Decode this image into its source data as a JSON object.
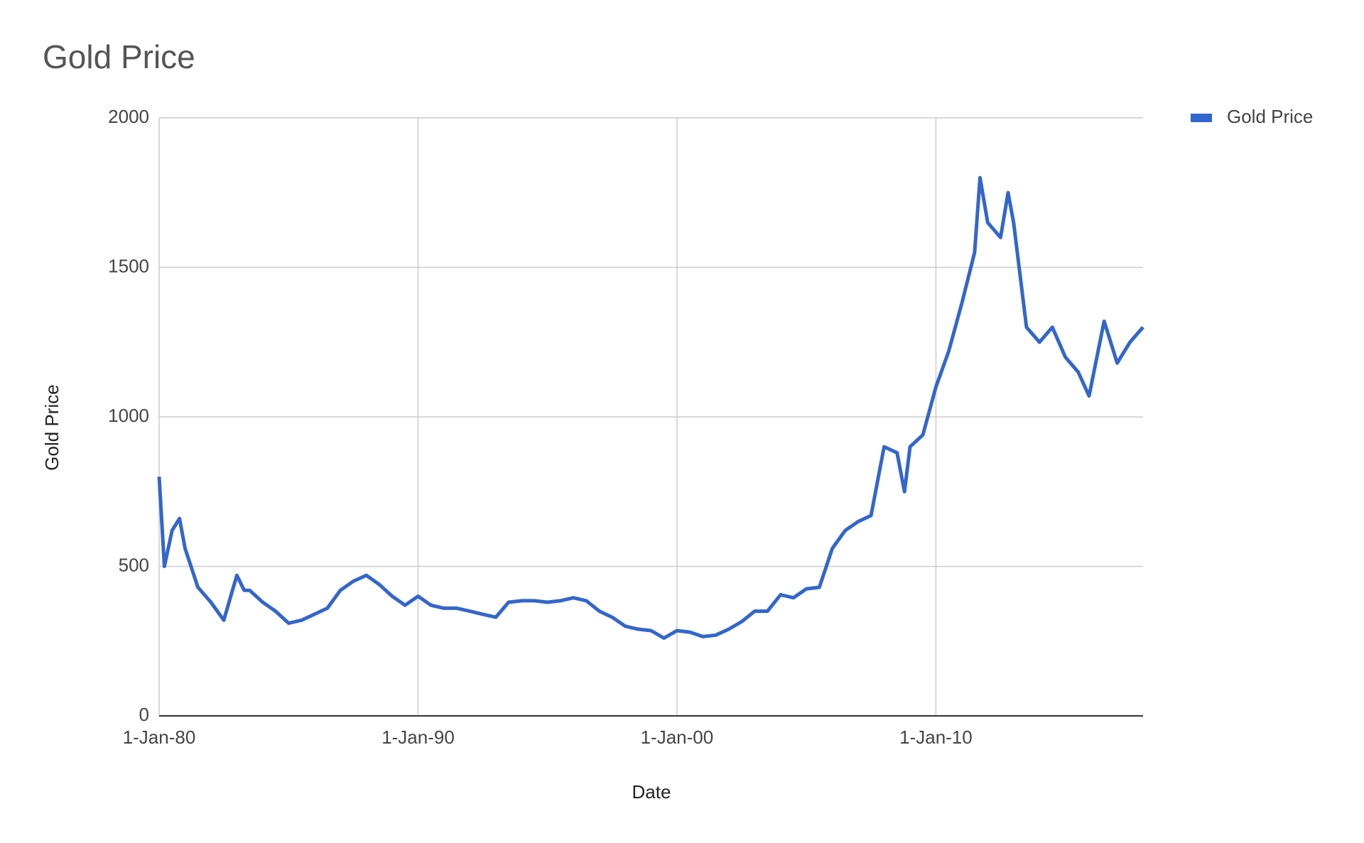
{
  "chart_data": {
    "type": "line",
    "title": "Gold Price",
    "x_label": "Date",
    "y_label": "Gold Price",
    "x": [
      "1980-01-01",
      "1980-03-15",
      "1980-07-01",
      "1980-10-15",
      "1981-01-01",
      "1981-07-01",
      "1982-01-01",
      "1982-07-01",
      "1983-01-01",
      "1983-04-15",
      "1983-07-01",
      "1984-01-01",
      "1984-07-01",
      "1985-01-01",
      "1985-07-01",
      "1986-01-01",
      "1986-07-01",
      "1987-01-01",
      "1987-07-01",
      "1988-01-01",
      "1988-07-01",
      "1989-01-01",
      "1989-07-01",
      "1990-01-01",
      "1990-07-01",
      "1991-01-01",
      "1991-07-01",
      "1992-01-01",
      "1992-07-01",
      "1993-01-01",
      "1993-07-01",
      "1994-01-01",
      "1994-07-01",
      "1995-01-01",
      "1995-07-01",
      "1996-01-01",
      "1996-07-01",
      "1997-01-01",
      "1997-07-01",
      "1998-01-01",
      "1998-07-01",
      "1999-01-01",
      "1999-07-01",
      "2000-01-01",
      "2000-07-01",
      "2001-01-01",
      "2001-07-01",
      "2002-01-01",
      "2002-07-01",
      "2003-01-01",
      "2003-07-01",
      "2004-01-01",
      "2004-07-01",
      "2005-01-01",
      "2005-07-01",
      "2006-01-01",
      "2006-07-01",
      "2007-01-01",
      "2007-07-01",
      "2008-01-01",
      "2008-07-01",
      "2008-10-15",
      "2009-01-01",
      "2009-07-01",
      "2010-01-01",
      "2010-07-01",
      "2011-01-01",
      "2011-07-01",
      "2011-09-15",
      "2012-01-01",
      "2012-07-01",
      "2012-10-15",
      "2013-01-01",
      "2013-07-01",
      "2014-01-01",
      "2014-07-01",
      "2015-01-01",
      "2015-07-01",
      "2015-12-01",
      "2016-07-01",
      "2017-01-01",
      "2017-07-01",
      "2018-01-01"
    ],
    "series": [
      {
        "name": "Gold Price",
        "color": "#3366cc",
        "values": [
          800,
          500,
          620,
          660,
          560,
          430,
          380,
          320,
          470,
          420,
          420,
          380,
          350,
          310,
          320,
          340,
          360,
          420,
          450,
          470,
          440,
          400,
          370,
          400,
          370,
          360,
          360,
          350,
          340,
          330,
          380,
          385,
          385,
          380,
          385,
          395,
          385,
          350,
          330,
          300,
          290,
          285,
          260,
          285,
          280,
          265,
          270,
          290,
          315,
          350,
          350,
          405,
          395,
          425,
          430,
          560,
          620,
          650,
          670,
          900,
          880,
          750,
          900,
          940,
          1100,
          1220,
          1380,
          1550,
          1800,
          1650,
          1600,
          1750,
          1650,
          1300,
          1250,
          1300,
          1200,
          1150,
          1070,
          1320,
          1180,
          1250,
          1300
        ]
      }
    ],
    "xlim": [
      "1980-01-01",
      "2018-01-01"
    ],
    "xticks": [
      {
        "value": "1980-01-01",
        "label": "1-Jan-80"
      },
      {
        "value": "1990-01-01",
        "label": "1-Jan-90"
      },
      {
        "value": "2000-01-01",
        "label": "1-Jan-00"
      },
      {
        "value": "2010-01-01",
        "label": "1-Jan-10"
      }
    ],
    "ylim": [
      0,
      2000
    ],
    "yticks": [
      0,
      500,
      1000,
      1500,
      2000
    ],
    "grid": true,
    "legend": "right"
  }
}
